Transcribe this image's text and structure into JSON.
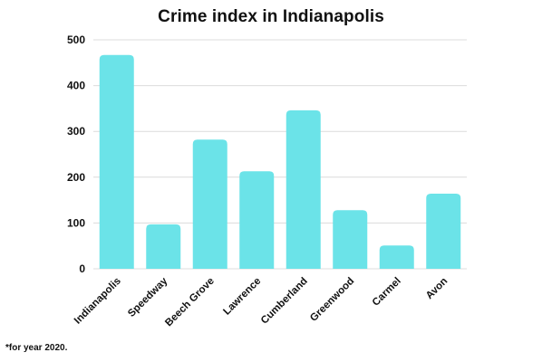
{
  "chart_data": {
    "type": "bar",
    "title": "Crime index in Indianapolis",
    "categories": [
      "Indianapolis",
      "Speedway",
      "Beech Grove",
      "Lawrence",
      "Cumberland",
      "Greenwood",
      "Carmel",
      "Avon"
    ],
    "values": [
      467,
      97,
      282,
      213,
      346,
      128,
      51,
      164
    ],
    "xlabel": "",
    "ylabel": "",
    "ylim": [
      0,
      500
    ],
    "yticks": [
      0,
      100,
      200,
      300,
      400,
      500
    ],
    "grid": true,
    "legend": "none",
    "bar_color": "#6be3e8",
    "footnote": "*for year 2020."
  }
}
